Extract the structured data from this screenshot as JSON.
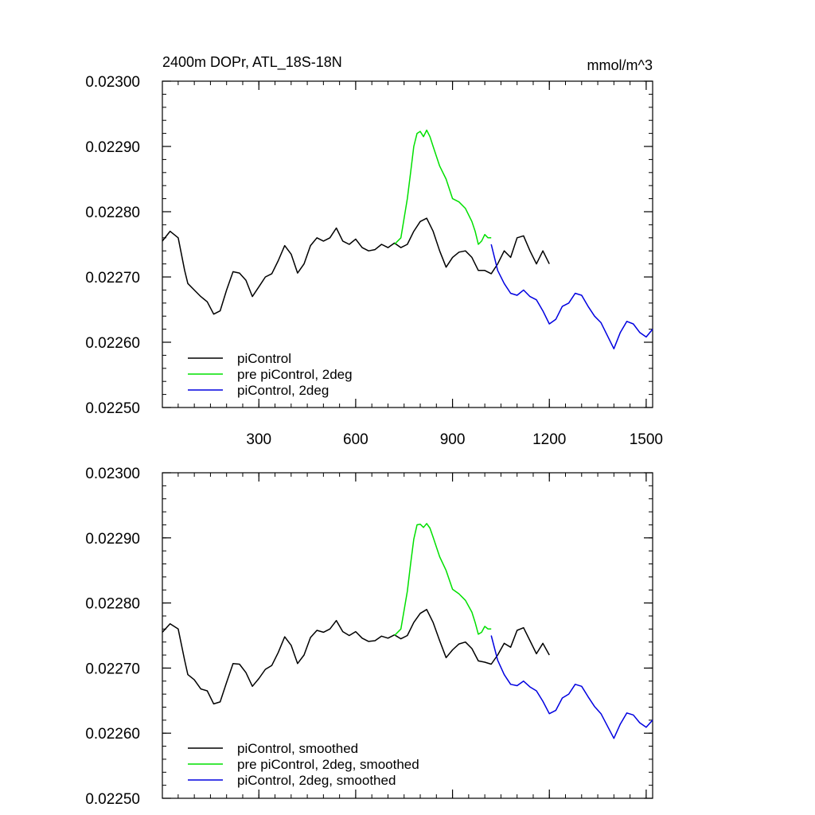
{
  "figure": {
    "title_left": "2400m DOPr, ATL_18S-18N",
    "title_right": "mmol/m^3"
  },
  "colors": {
    "black": "#000000",
    "green": "#00e000",
    "blue": "#0000e0"
  },
  "chart_data": [
    {
      "type": "line",
      "title": "2400m DOPr, ATL_18S-18N",
      "units": "mmol/m^3",
      "xlabel": "",
      "ylabel": "",
      "xlim": [
        1,
        1520
      ],
      "ylim": [
        0.0225,
        0.023
      ],
      "x_ticks": [
        300,
        600,
        900,
        1200,
        1500
      ],
      "x_tick_labels": [
        "300",
        "600",
        "900",
        "1200",
        "1500"
      ],
      "y_ticks": [
        0.0225,
        0.0226,
        0.0227,
        0.0228,
        0.0229,
        0.023
      ],
      "y_tick_labels": [
        "0.02250",
        "0.02260",
        "0.02270",
        "0.02280",
        "0.02290",
        "0.02300"
      ],
      "show_x_tick_labels": true,
      "legend": [
        "piControl",
        "pre piControl, 2deg",
        "piControl, 2deg"
      ],
      "series": [
        {
          "name": "piControl",
          "color": "#000000",
          "x": [
            1,
            25,
            50,
            70,
            80,
            100,
            120,
            140,
            160,
            180,
            200,
            220,
            240,
            260,
            280,
            300,
            320,
            340,
            360,
            380,
            400,
            420,
            440,
            460,
            480,
            500,
            520,
            540,
            560,
            580,
            600,
            620,
            640,
            660,
            680,
            700,
            720,
            740,
            760,
            780,
            800,
            820,
            840,
            860,
            880,
            900,
            920,
            940,
            960,
            980,
            1000,
            1020,
            1040,
            1060,
            1080,
            1100,
            1120,
            1140,
            1160,
            1180,
            1200
          ],
          "values": [
            0.022755,
            0.02277,
            0.02276,
            0.02271,
            0.02269,
            0.02268,
            0.02267,
            0.022662,
            0.022643,
            0.022648,
            0.02268,
            0.022708,
            0.022706,
            0.022695,
            0.02267,
            0.022685,
            0.0227,
            0.022705,
            0.022725,
            0.022748,
            0.022735,
            0.022706,
            0.02272,
            0.022748,
            0.02276,
            0.022755,
            0.02276,
            0.022775,
            0.022755,
            0.02275,
            0.022758,
            0.022745,
            0.02274,
            0.022742,
            0.02275,
            0.022745,
            0.022752,
            0.022745,
            0.02275,
            0.02277,
            0.022785,
            0.02279,
            0.02277,
            0.02274,
            0.022715,
            0.02273,
            0.022738,
            0.02274,
            0.02273,
            0.02271,
            0.02271,
            0.022705,
            0.02272,
            0.02274,
            0.02273,
            0.02276,
            0.022763,
            0.02274,
            0.02272,
            0.02274,
            0.02272
          ]
        },
        {
          "name": "pre piControl, 2deg",
          "color": "#00e000",
          "x": [
            720,
            740,
            760,
            770,
            780,
            790,
            800,
            810,
            820,
            830,
            840,
            860,
            880,
            900,
            920,
            940,
            960,
            970,
            980,
            990,
            1000,
            1010,
            1020
          ],
          "values": [
            0.02275,
            0.02276,
            0.02282,
            0.02286,
            0.0229,
            0.02292,
            0.022923,
            0.022915,
            0.022925,
            0.022915,
            0.0229,
            0.02287,
            0.02285,
            0.02282,
            0.022815,
            0.022805,
            0.022785,
            0.02277,
            0.02275,
            0.022755,
            0.022765,
            0.02276,
            0.02276
          ]
        },
        {
          "name": "piControl, 2deg",
          "color": "#0000e0",
          "x": [
            1020,
            1040,
            1060,
            1080,
            1100,
            1120,
            1140,
            1160,
            1180,
            1200,
            1220,
            1240,
            1260,
            1280,
            1300,
            1320,
            1340,
            1360,
            1380,
            1400,
            1420,
            1440,
            1460,
            1480,
            1500,
            1520
          ],
          "values": [
            0.02275,
            0.02271,
            0.02269,
            0.022675,
            0.022672,
            0.02268,
            0.02267,
            0.022665,
            0.022648,
            0.022628,
            0.022635,
            0.022655,
            0.02266,
            0.022675,
            0.022672,
            0.022655,
            0.02264,
            0.02263,
            0.02261,
            0.02259,
            0.022615,
            0.022632,
            0.022628,
            0.022615,
            0.022608,
            0.02262
          ]
        }
      ]
    },
    {
      "type": "line",
      "title": "",
      "units": "",
      "xlabel": "",
      "ylabel": "",
      "xlim": [
        1,
        1520
      ],
      "ylim": [
        0.0225,
        0.023
      ],
      "x_ticks": [
        300,
        600,
        900,
        1200,
        1500
      ],
      "x_tick_labels": [],
      "y_ticks": [
        0.0225,
        0.0226,
        0.0227,
        0.0228,
        0.0229,
        0.023
      ],
      "y_tick_labels": [
        "0.02250",
        "0.02260",
        "0.02270",
        "0.02280",
        "0.02290",
        "0.02300"
      ],
      "show_x_tick_labels": false,
      "legend": [
        "piControl, smoothed",
        "pre piControl, 2deg, smoothed",
        "piControl, 2deg, smoothed"
      ],
      "series": [
        {
          "name": "piControl, smoothed",
          "color": "#000000",
          "x": [
            1,
            25,
            50,
            70,
            80,
            100,
            120,
            140,
            160,
            180,
            200,
            220,
            240,
            260,
            280,
            300,
            320,
            340,
            360,
            380,
            400,
            420,
            440,
            460,
            480,
            500,
            520,
            540,
            560,
            580,
            600,
            620,
            640,
            660,
            680,
            700,
            720,
            740,
            760,
            780,
            800,
            820,
            840,
            860,
            880,
            900,
            920,
            940,
            960,
            980,
            1000,
            1020,
            1040,
            1060,
            1080,
            1100,
            1120,
            1140,
            1160,
            1180,
            1200
          ],
          "values": [
            0.022755,
            0.022768,
            0.02276,
            0.022712,
            0.02269,
            0.022682,
            0.022668,
            0.022665,
            0.022645,
            0.022648,
            0.022678,
            0.022707,
            0.022706,
            0.022693,
            0.022672,
            0.022684,
            0.022698,
            0.022704,
            0.022724,
            0.022748,
            0.022735,
            0.022707,
            0.02272,
            0.022747,
            0.022758,
            0.022755,
            0.02276,
            0.022773,
            0.022756,
            0.02275,
            0.022756,
            0.022746,
            0.022741,
            0.022742,
            0.022749,
            0.022746,
            0.022751,
            0.022745,
            0.02275,
            0.02277,
            0.022784,
            0.02279,
            0.02277,
            0.022742,
            0.022716,
            0.022728,
            0.022737,
            0.02274,
            0.02273,
            0.022711,
            0.022709,
            0.022706,
            0.02272,
            0.022738,
            0.022732,
            0.022758,
            0.022762,
            0.022742,
            0.022722,
            0.022738,
            0.02272
          ]
        },
        {
          "name": "pre piControl, 2deg, smoothed",
          "color": "#00e000",
          "x": [
            720,
            740,
            760,
            770,
            780,
            790,
            800,
            810,
            820,
            830,
            840,
            860,
            880,
            900,
            920,
            940,
            960,
            970,
            980,
            990,
            1000,
            1010,
            1020
          ],
          "values": [
            0.02275,
            0.02276,
            0.022818,
            0.02286,
            0.022898,
            0.02292,
            0.022921,
            0.022916,
            0.022922,
            0.022915,
            0.022901,
            0.022871,
            0.02285,
            0.022821,
            0.022814,
            0.022804,
            0.022786,
            0.02277,
            0.022752,
            0.022755,
            0.022764,
            0.02276,
            0.02276
          ]
        },
        {
          "name": "piControl, 2deg, smoothed",
          "color": "#0000e0",
          "x": [
            1020,
            1040,
            1060,
            1080,
            1100,
            1120,
            1140,
            1160,
            1180,
            1200,
            1220,
            1240,
            1260,
            1280,
            1300,
            1320,
            1340,
            1360,
            1380,
            1400,
            1420,
            1440,
            1460,
            1480,
            1500,
            1520
          ],
          "values": [
            0.02275,
            0.022712,
            0.02269,
            0.022675,
            0.022673,
            0.02268,
            0.022671,
            0.022665,
            0.022649,
            0.02263,
            0.022635,
            0.022654,
            0.02266,
            0.022675,
            0.022672,
            0.022656,
            0.022641,
            0.02263,
            0.022611,
            0.022592,
            0.022614,
            0.022631,
            0.022628,
            0.022616,
            0.022609,
            0.02262
          ]
        }
      ]
    }
  ]
}
